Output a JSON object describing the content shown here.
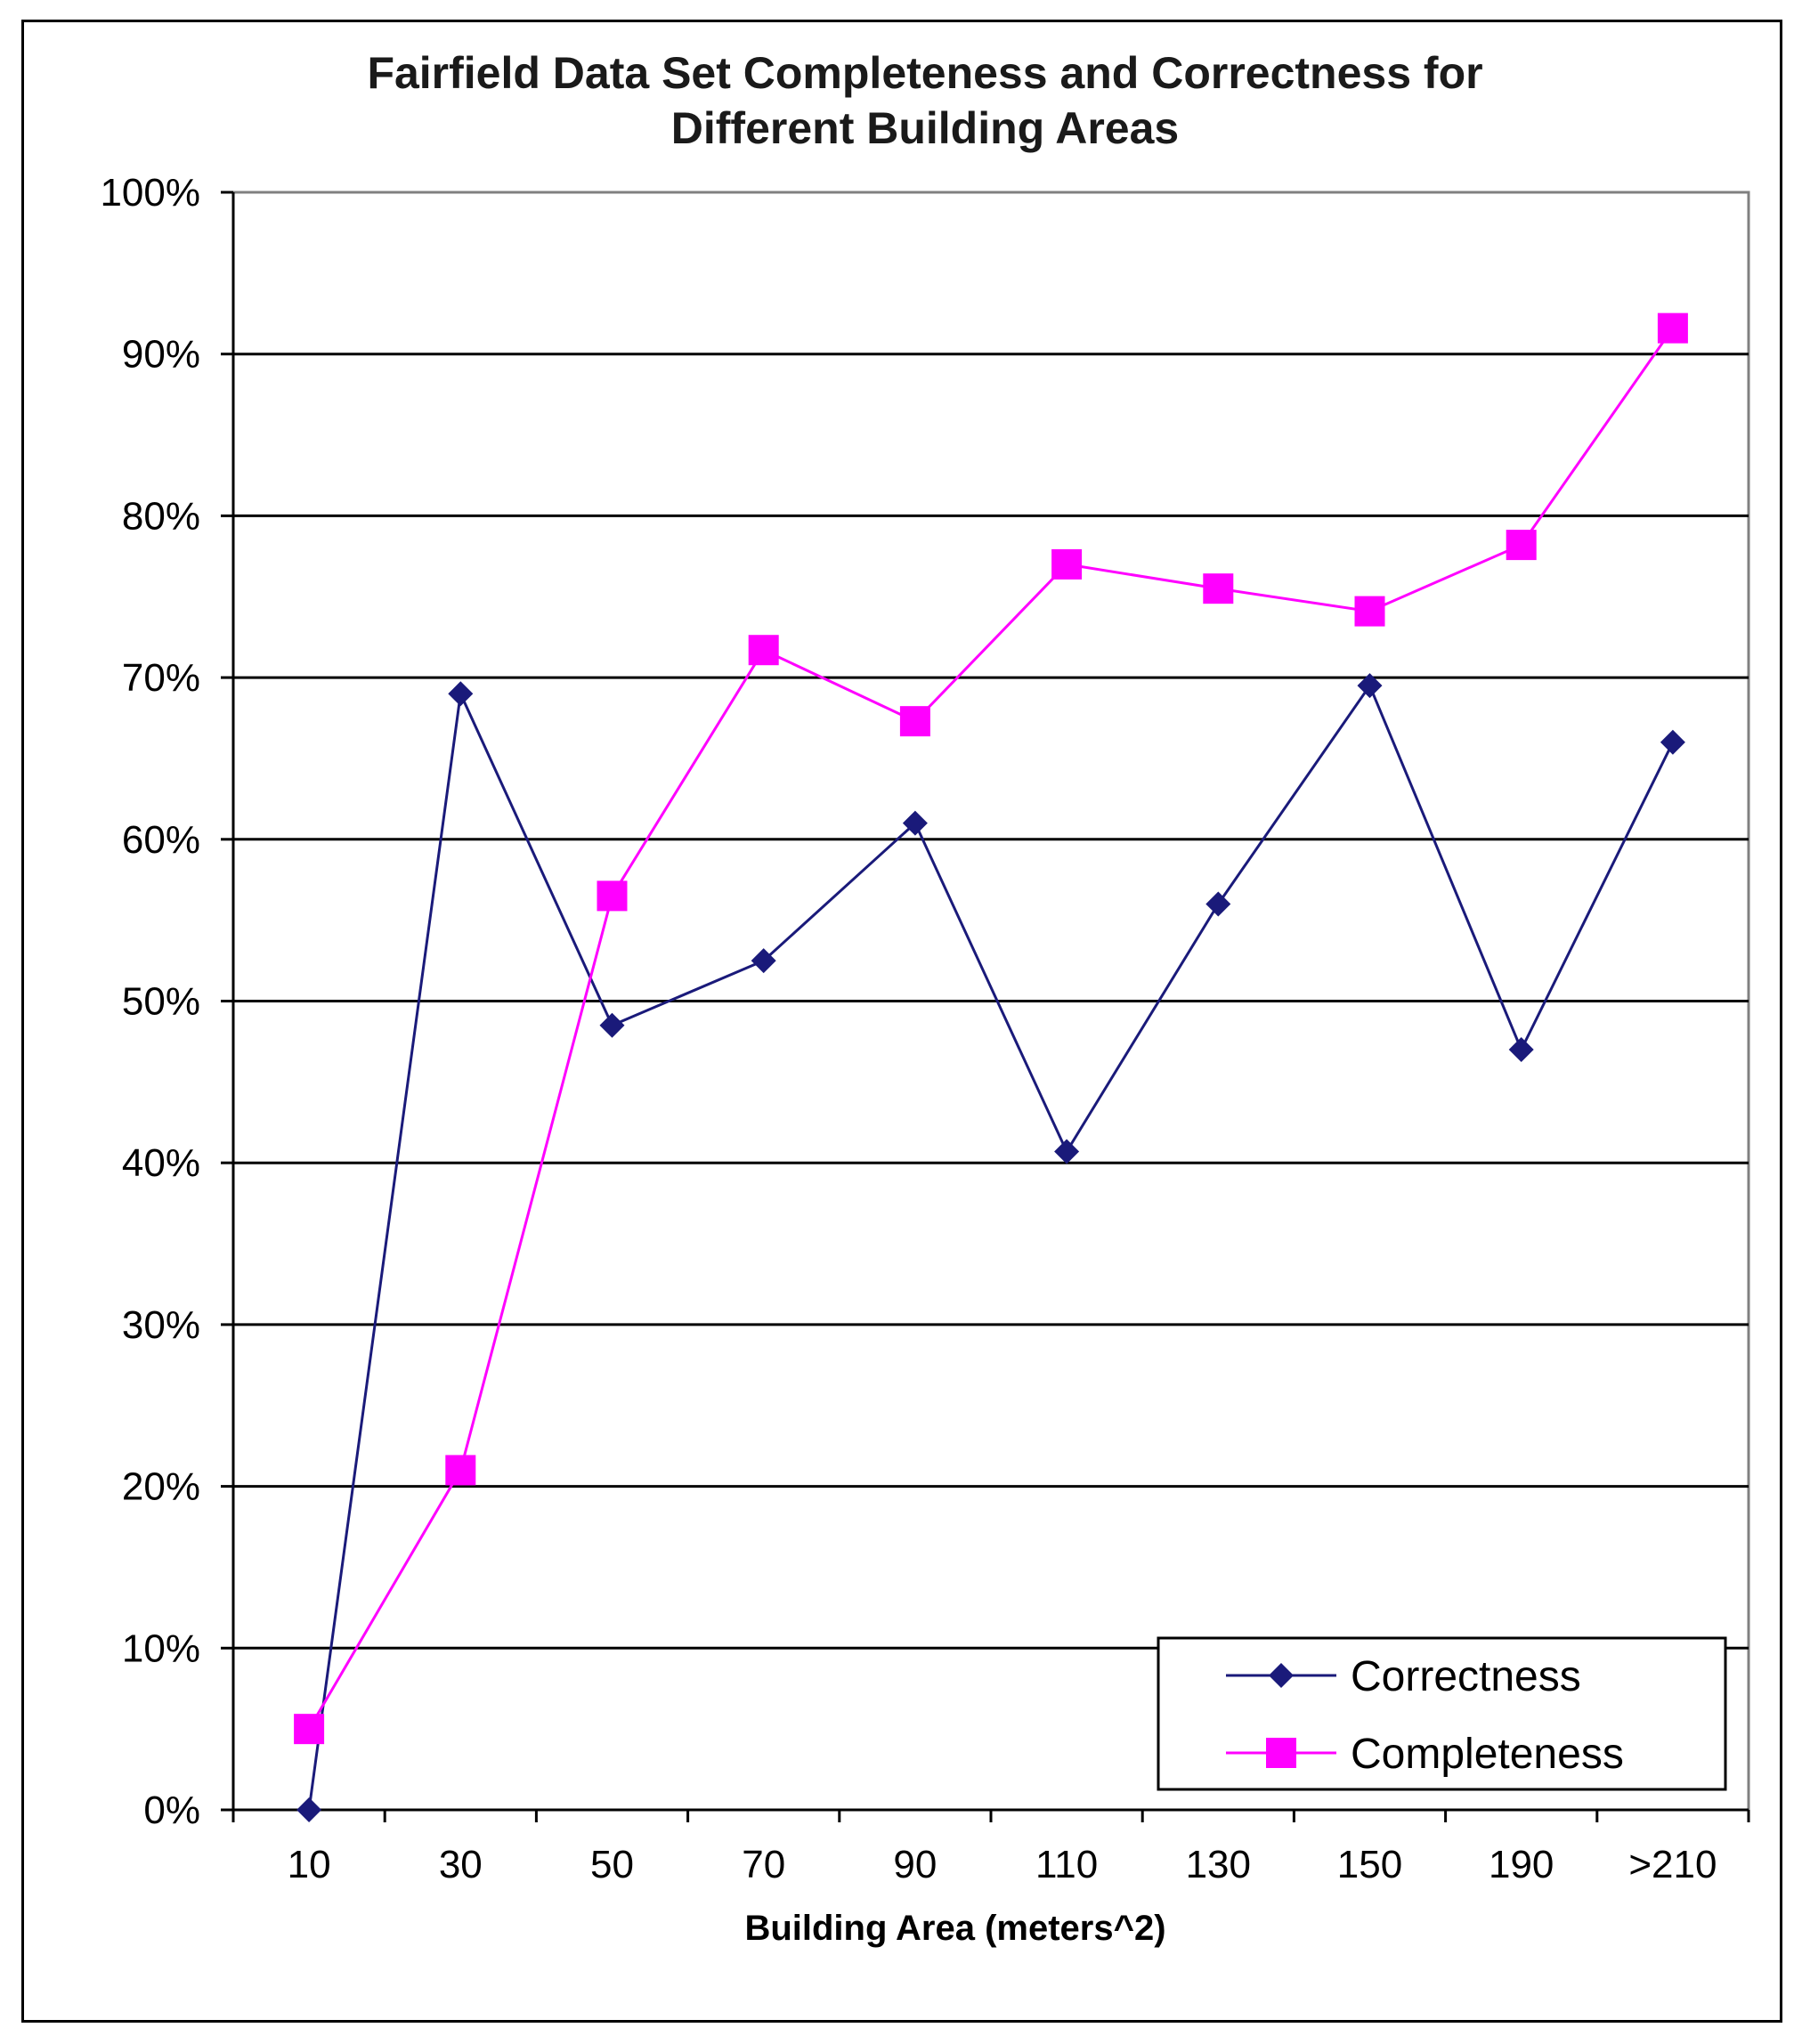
{
  "chart_data": {
    "type": "line",
    "title_lines": [
      "Fairfield Data Set Completeness and Correctness for",
      "Different Building Areas"
    ],
    "xlabel": "Building Area (meters^2)",
    "ylabel": "",
    "categories": [
      "10",
      "30",
      "50",
      "70",
      "90",
      "110",
      "130",
      "150",
      "190",
      ">210"
    ],
    "ylim": [
      0,
      100
    ],
    "yticks": [
      0,
      10,
      20,
      30,
      40,
      50,
      60,
      70,
      80,
      90,
      100
    ],
    "ytick_labels": [
      "0%",
      "10%",
      "20%",
      "30%",
      "40%",
      "50%",
      "60%",
      "70%",
      "80%",
      "90%",
      "100%"
    ],
    "grid": "horizontal",
    "legend_position": "bottom-right",
    "series": [
      {
        "name": "Correctness",
        "color": "#1a1a7a",
        "marker": "diamond",
        "values": [
          0,
          69,
          48.5,
          52.5,
          61,
          40.7,
          56,
          69.5,
          47,
          66
        ]
      },
      {
        "name": "Completeness",
        "color": "#ff00ff",
        "marker": "square",
        "values": [
          5,
          21,
          56.5,
          71.7,
          67.3,
          77,
          75.5,
          74.1,
          78.2,
          91.6
        ]
      }
    ]
  }
}
